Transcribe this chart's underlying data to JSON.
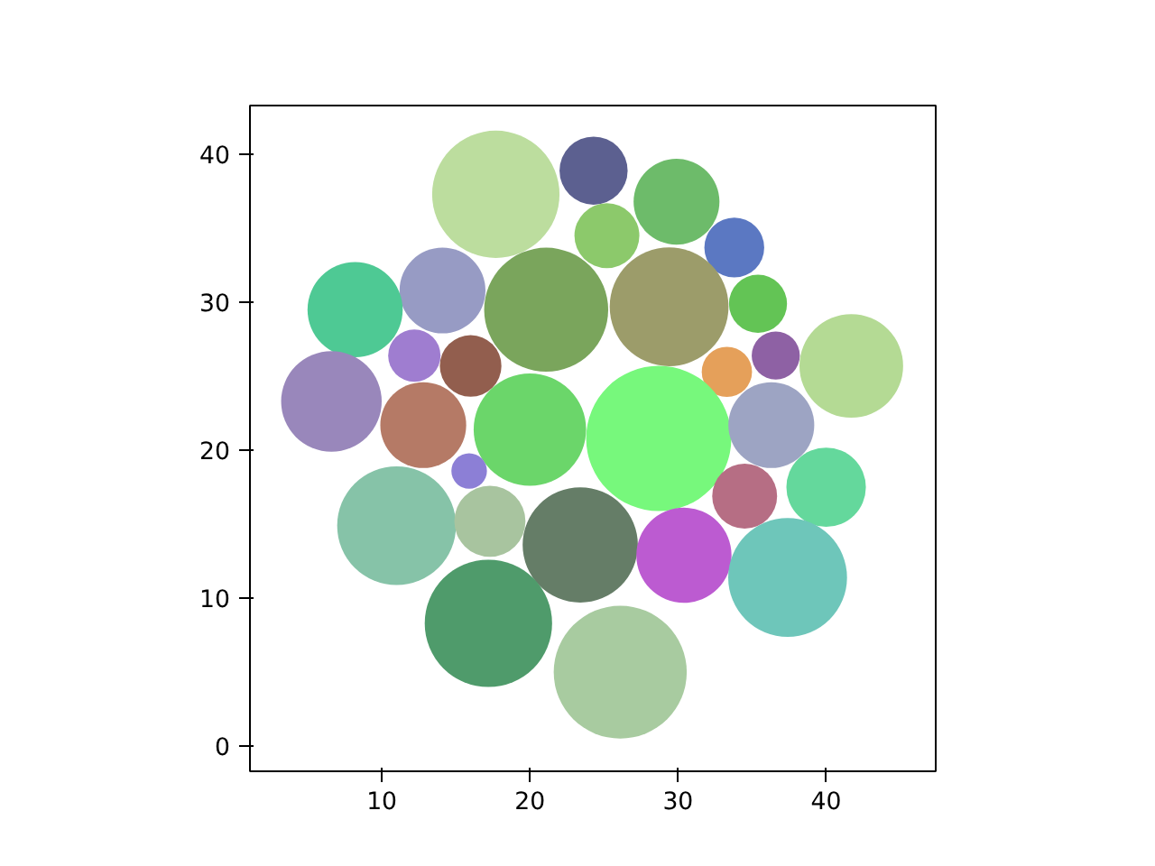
{
  "chart_data": {
    "type": "bubble",
    "x": [
      17.7,
      24.3,
      29.9,
      25.2,
      33.8,
      14.1,
      8.2,
      21.1,
      29.4,
      35.4,
      41.7,
      12.2,
      16.0,
      33.3,
      36.6,
      6.6,
      12.8,
      20.0,
      28.7,
      36.3,
      40.0,
      15.9,
      34.5,
      11.0,
      17.3,
      23.4,
      30.4,
      37.4,
      17.2,
      26.1
    ],
    "values": [
      37.3,
      38.9,
      36.8,
      34.5,
      33.7,
      30.8,
      29.5,
      29.5,
      29.7,
      29.9,
      25.7,
      26.4,
      25.7,
      25.3,
      26.4,
      23.3,
      21.7,
      21.4,
      20.8,
      21.7,
      17.5,
      18.6,
      16.9,
      14.9,
      15.2,
      13.6,
      12.9,
      11.4,
      8.3,
      5.0
    ],
    "sizes": [
      0.77,
      0.22,
      0.35,
      0.2,
      0.17,
      0.35,
      0.43,
      0.73,
      0.67,
      0.16,
      0.51,
      0.13,
      0.18,
      0.12,
      0.11,
      0.48,
      0.35,
      0.6,
      1,
      0.35,
      0.3,
      0.06,
      0.2,
      0.67,
      0.24,
      0.63,
      0.43,
      0.67,
      0.77,
      0.84
    ],
    "colors": [
      "#bcdd9e",
      "#5c6090",
      "#6dbb6a",
      "#8cc96b",
      "#5b78c2",
      "#979bc4",
      "#4ec994",
      "#7aa55c",
      "#9c9c6a",
      "#63c455",
      "#b4da94",
      "#9f7dd0",
      "#925e4e",
      "#e5a05a",
      "#8e61a4",
      "#9987bb",
      "#b57a66",
      "#6bd66a",
      "#77f87c",
      "#9da4c3",
      "#64d89c",
      "#8c7fd6",
      "#b66e84",
      "#86c3a8",
      "#a8c49f",
      "#657d67",
      "#bc5bd1",
      "#6ec6ba",
      "#4f9b6b",
      "#a8cba0"
    ],
    "xlim": [
      1.1,
      47.4
    ],
    "ylim": [
      -1.7,
      43.3
    ],
    "xticks": [
      10,
      20,
      30,
      40
    ],
    "yticks": [
      0,
      10,
      20,
      30,
      40
    ],
    "grid": false
  }
}
